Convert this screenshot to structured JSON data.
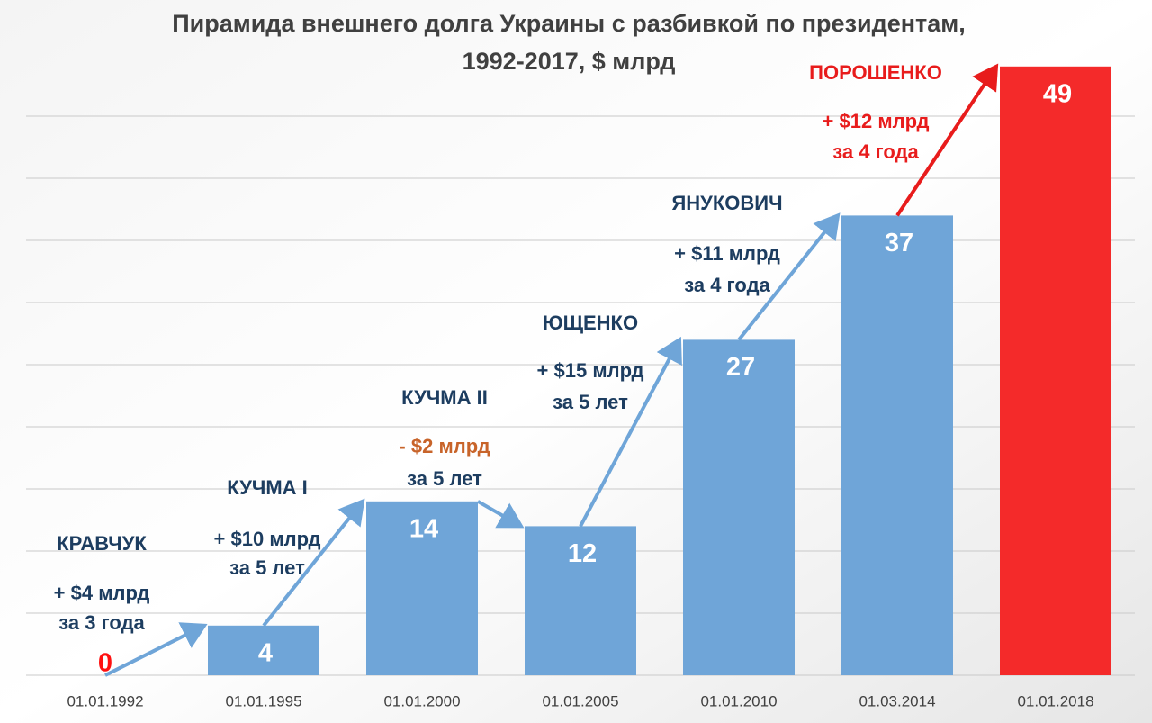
{
  "chart_data": {
    "type": "bar",
    "title": [
      "Пирамида внешнего долга Украины с разбивкой по президентам,",
      "1992-2017, $ млрд"
    ],
    "categories": [
      "01.01.1992",
      "01.01.1995",
      "01.01.2000",
      "01.01.2005",
      "01.01.2010",
      "01.03.2014",
      "01.01.2018"
    ],
    "values": [
      0,
      4,
      14,
      12,
      27,
      37,
      49
    ],
    "colors": [
      "#6fa5d8",
      "#6fa5d8",
      "#6fa5d8",
      "#6fa5d8",
      "#6fa5d8",
      "#6fa5d8",
      "#f42a2a"
    ],
    "value_label_colors": [
      "#ff1010",
      "#ffffff",
      "#ffffff",
      "#ffffff",
      "#ffffff",
      "#ffffff",
      "#ffffff"
    ],
    "ylim": [
      0,
      50
    ],
    "yticks": [
      0,
      5,
      10,
      15,
      20,
      25,
      30,
      35,
      40,
      45
    ],
    "grid": true,
    "periods": [
      {
        "president": "КРАВЧУК",
        "change": "+ $4 млрд",
        "duration": "за 3 года",
        "color": "#1d3d60",
        "change_color": "#1d3d60",
        "arrow_color": "#6fa5d8"
      },
      {
        "president": "КУЧМА I",
        "change": "+ $10 млрд",
        "duration": "за 5 лет",
        "color": "#1d3d60",
        "change_color": "#1d3d60",
        "arrow_color": "#6fa5d8"
      },
      {
        "president": "КУЧМА II",
        "change": "- $2 млрд",
        "duration": "за 5 лет",
        "color": "#1d3d60",
        "change_color": "#c8642a",
        "arrow_color": "#6fa5d8"
      },
      {
        "president": "ЮЩЕНКО",
        "change": "+ $15 млрд",
        "duration": "за 5 лет",
        "color": "#1d3d60",
        "change_color": "#1d3d60",
        "arrow_color": "#6fa5d8"
      },
      {
        "president": "ЯНУКОВИЧ",
        "change": "+ $11 млрд",
        "duration": "за 4 года",
        "color": "#1d3d60",
        "change_color": "#1d3d60",
        "arrow_color": "#6fa5d8"
      },
      {
        "president": "ПОРОШЕНКО",
        "change": "+ $12 млрд",
        "duration": "за 4 года",
        "color": "#e81c1c",
        "change_color": "#e81c1c",
        "arrow_color": "#e81c1c"
      }
    ]
  }
}
